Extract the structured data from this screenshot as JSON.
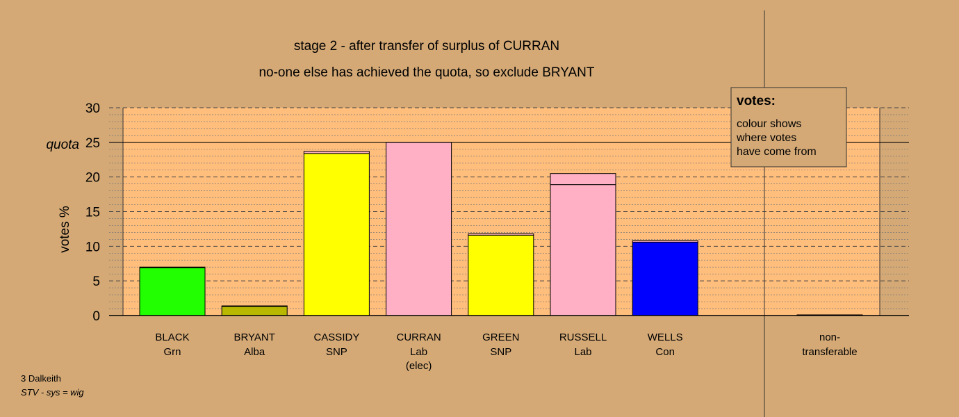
{
  "chart_data": {
    "type": "bar",
    "title": "stage 2 - after transfer of surplus of CURRAN",
    "subtitle": "no-one else has achieved the quota, so exclude BRYANT",
    "ylabel": "votes %",
    "ylim": [
      0,
      30
    ],
    "yticks": [
      "0",
      "5",
      "10",
      "15",
      "20",
      "25",
      "30"
    ],
    "quota": 25,
    "quota_label": "quota",
    "candidates": [
      {
        "name": "BLACK",
        "party": "Grn",
        "note": "",
        "base": 6.9,
        "transfer": 0.1,
        "color": "#22ff00"
      },
      {
        "name": "BRYANT",
        "party": "Alba",
        "note": "",
        "base": 1.3,
        "transfer": 0.1,
        "color": "#b8b800"
      },
      {
        "name": "CASSIDY",
        "party": "SNP",
        "note": "",
        "base": 23.4,
        "transfer": 0.3,
        "color": "#ffff00"
      },
      {
        "name": "CURRAN",
        "party": "Lab",
        "note": "(elec)",
        "base": 25.0,
        "transfer": 0,
        "color": "#ffb0c4"
      },
      {
        "name": "GREEN",
        "party": "SNP",
        "note": "",
        "base": 11.6,
        "transfer": 0.2,
        "color": "#ffff00"
      },
      {
        "name": "RUSSELL",
        "party": "Lab",
        "note": "",
        "base": 18.9,
        "transfer": 1.6,
        "color": "#ffb0c4"
      },
      {
        "name": "WELLS",
        "party": "Con",
        "note": "",
        "base": 10.6,
        "transfer": 0.2,
        "color": "#0000ff"
      }
    ],
    "non_transferable": {
      "label1": "non-",
      "label2": "transferable",
      "value": 0.1,
      "color": "#ffb0c4"
    },
    "legend": {
      "title": "votes:",
      "lines": [
        "colour shows",
        "where votes",
        "have come from"
      ]
    }
  },
  "footer": {
    "line1": "3 Dalkeith",
    "line2": "STV - sys = wig"
  }
}
